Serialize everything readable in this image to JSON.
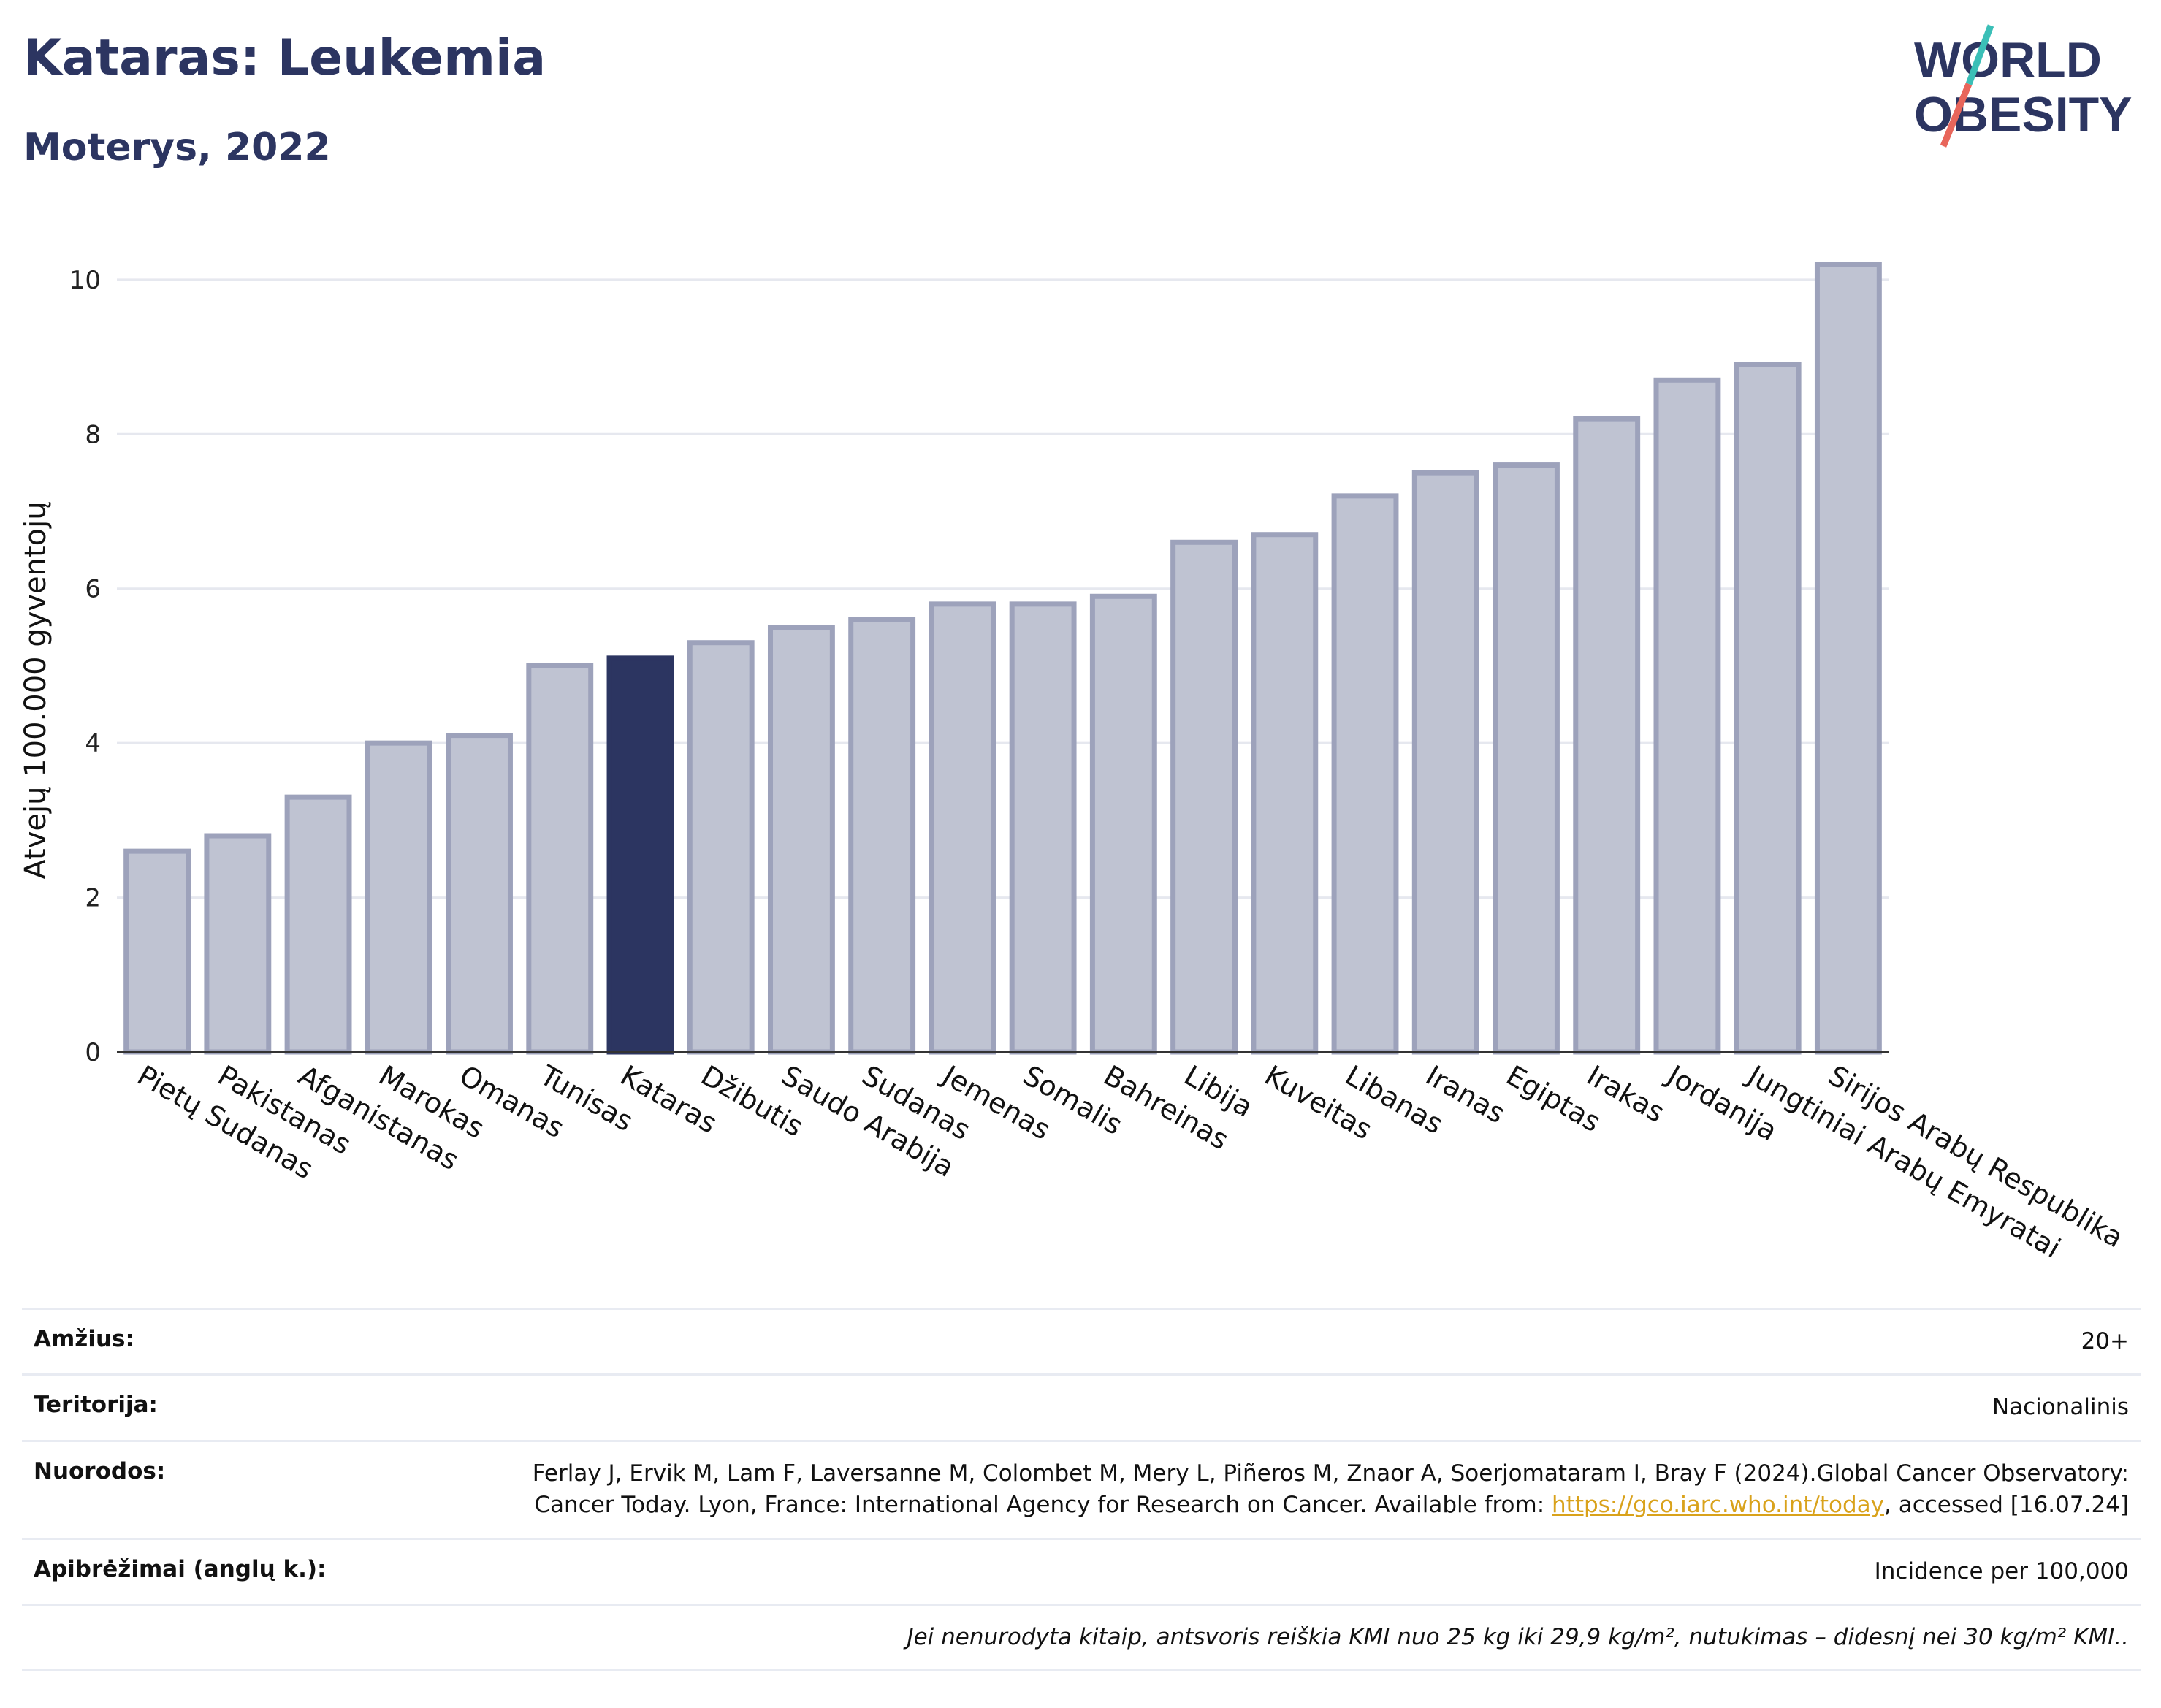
{
  "header": {
    "title": "Kataras: Leukemia",
    "subtitle": "Moterys, 2022"
  },
  "logo": {
    "line1": "WORLD",
    "line2": "OBESITY"
  },
  "colors": {
    "bar": "#bfc3d2",
    "bar_stroke": "#9da2bb",
    "highlight": "#2c3561",
    "accent_teal": "#3bbfb7",
    "accent_red": "#e8665b"
  },
  "chart_data": {
    "type": "bar",
    "ylabel": "Atvejų 100.000 gyventojų",
    "xlabel": "",
    "ylim": [
      0,
      10.5
    ],
    "yticks": [
      0,
      2,
      4,
      6,
      8,
      10
    ],
    "grid": true,
    "highlight": "Kataras",
    "categories": [
      "Pietų Sudanas",
      "Pakistanas",
      "Afganistanas",
      "Marokas",
      "Omanas",
      "Tunisas",
      "Kataras",
      "Džibutis",
      "Saudo Arabija",
      "Sudanas",
      "Jemenas",
      "Somalis",
      "Bahreinas",
      "Libija",
      "Kuveitas",
      "Libanas",
      "Iranas",
      "Egiptas",
      "Irakas",
      "Jordanija",
      "Jungtiniai Arabų Emyratai",
      "Sirijos Arabų Respublika"
    ],
    "values": [
      2.6,
      2.8,
      3.3,
      4.0,
      4.1,
      5.0,
      5.1,
      5.3,
      5.5,
      5.6,
      5.8,
      5.8,
      5.9,
      6.6,
      6.7,
      7.2,
      7.5,
      7.6,
      8.2,
      8.7,
      8.9,
      10.2
    ]
  },
  "info": {
    "age_label": "Amžius:",
    "age_value": "20+",
    "territory_label": "Teritorija:",
    "territory_value": "Nacionalinis",
    "refs_label": "Nuorodos:",
    "refs_text": "Ferlay J, Ervik M, Lam F, Laversanne M, Colombet M, Mery L, Piñeros M, Znaor A, Soerjomataram I, Bray F (2024).Global Cancer Observatory: Cancer Today. Lyon, France: International Agency for Research on Cancer. Available from:",
    "refs_link": "https://gco.iarc.who.int/today",
    "refs_tail": ", accessed [16.07.24]",
    "defs_label": "Apibrėžimai (anglų k.):",
    "defs_value": "Incidence per 100,000",
    "note": "Jei nenurodyta kitaip, antsvoris reiškia KMI nuo 25 kg iki 29,9 kg/m², nutukimas – didesnį nei 30 kg/m² KMI.."
  }
}
